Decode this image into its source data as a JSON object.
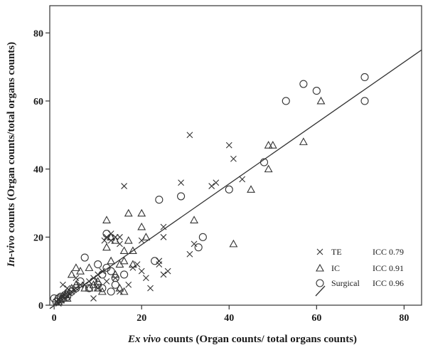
{
  "chart_data": {
    "type": "scatter",
    "xlabel_italic": "Ex vivo",
    "xlabel_rest": " counts (Organ counts/ total organs counts)",
    "ylabel_italic": "In-vivo",
    "ylabel_rest": " counts (Organ counts/total organs counts)",
    "xlim": [
      -1,
      84
    ],
    "ylim": [
      0,
      88
    ],
    "xticks": [
      0,
      20,
      40,
      60,
      80
    ],
    "yticks": [
      0,
      20,
      40,
      60,
      80
    ],
    "grid": false,
    "legend_position": "bottom-right",
    "series": [
      {
        "name": "TE",
        "icc": "ICC 0.79",
        "marker": "x",
        "points": [
          [
            0.5,
            1
          ],
          [
            1,
            1.5
          ],
          [
            1.5,
            2
          ],
          [
            2,
            2.5
          ],
          [
            2.5,
            3
          ],
          [
            3,
            3
          ],
          [
            3.5,
            3.5
          ],
          [
            4,
            4
          ],
          [
            4.5,
            4.5
          ],
          [
            5,
            5
          ],
          [
            6,
            6
          ],
          [
            7,
            6
          ],
          [
            8,
            7
          ],
          [
            9,
            8
          ],
          [
            10,
            9
          ],
          [
            11,
            10
          ],
          [
            11.5,
            19
          ],
          [
            12,
            20
          ],
          [
            13,
            19
          ],
          [
            14,
            20
          ],
          [
            15,
            18
          ],
          [
            15,
            20
          ],
          [
            16,
            35
          ],
          [
            18,
            11
          ],
          [
            19,
            12
          ],
          [
            20,
            10
          ],
          [
            20,
            19
          ],
          [
            21,
            8
          ],
          [
            22,
            5
          ],
          [
            24,
            13
          ],
          [
            24,
            12
          ],
          [
            25,
            9
          ],
          [
            25,
            20
          ],
          [
            25,
            23
          ],
          [
            26,
            10
          ],
          [
            29,
            36
          ],
          [
            31,
            15
          ],
          [
            31,
            50
          ],
          [
            32,
            18
          ],
          [
            36,
            35
          ],
          [
            37,
            36
          ],
          [
            40,
            47
          ],
          [
            41,
            43
          ],
          [
            43,
            37
          ],
          [
            9,
            2
          ],
          [
            13,
            21
          ],
          [
            12,
            7
          ],
          [
            14,
            8
          ],
          [
            10,
            5
          ],
          [
            15,
            4
          ],
          [
            17,
            6
          ],
          [
            2,
            6
          ],
          [
            3,
            5
          ],
          [
            5,
            8
          ],
          [
            1,
            0.5
          ]
        ]
      },
      {
        "name": "IC",
        "icc": "ICC 0.91",
        "marker": "triangle",
        "points": [
          [
            1,
            1
          ],
          [
            1.5,
            1.5
          ],
          [
            2,
            2
          ],
          [
            2.5,
            3
          ],
          [
            3,
            4
          ],
          [
            4,
            5
          ],
          [
            4,
            9
          ],
          [
            5,
            11
          ],
          [
            6,
            10
          ],
          [
            7,
            5
          ],
          [
            8,
            11
          ],
          [
            9,
            6
          ],
          [
            10,
            5
          ],
          [
            11,
            4
          ],
          [
            12,
            25
          ],
          [
            13,
            13
          ],
          [
            14,
            9
          ],
          [
            14,
            19
          ],
          [
            15,
            5
          ],
          [
            15,
            12
          ],
          [
            16,
            4
          ],
          [
            16,
            13
          ],
          [
            17,
            27
          ],
          [
            17,
            19
          ],
          [
            18,
            16
          ],
          [
            18,
            12
          ],
          [
            20,
            27
          ],
          [
            20,
            23
          ],
          [
            21,
            20
          ],
          [
            32,
            25
          ],
          [
            41,
            18
          ],
          [
            45,
            34
          ],
          [
            49,
            47
          ],
          [
            50,
            47
          ],
          [
            49,
            40
          ],
          [
            57,
            48
          ],
          [
            61,
            60
          ],
          [
            12,
            17
          ],
          [
            13,
            20
          ],
          [
            16,
            16
          ],
          [
            3,
            2
          ],
          [
            5,
            6
          ],
          [
            10,
            7
          ],
          [
            8,
            5
          ]
        ]
      },
      {
        "name": "Surgical",
        "icc": "ICC 0.96",
        "marker": "circle",
        "points": [
          [
            0,
            2
          ],
          [
            0.5,
            1
          ],
          [
            1,
            2
          ],
          [
            1.5,
            2.5
          ],
          [
            2,
            2
          ],
          [
            2.5,
            3
          ],
          [
            3,
            2.5
          ],
          [
            4,
            4
          ],
          [
            5,
            5
          ],
          [
            6,
            7
          ],
          [
            7,
            14
          ],
          [
            8,
            5
          ],
          [
            9,
            7
          ],
          [
            10,
            6
          ],
          [
            10,
            12
          ],
          [
            11,
            5
          ],
          [
            12,
            21
          ],
          [
            13,
            10
          ],
          [
            13,
            4
          ],
          [
            14,
            6
          ],
          [
            14,
            8
          ],
          [
            16,
            9
          ],
          [
            23,
            13
          ],
          [
            24,
            31
          ],
          [
            29,
            32
          ],
          [
            33,
            17
          ],
          [
            34,
            20
          ],
          [
            40,
            34
          ],
          [
            48,
            42
          ],
          [
            53,
            60
          ],
          [
            57,
            65
          ],
          [
            60,
            63
          ],
          [
            71,
            67
          ],
          [
            71,
            60
          ],
          [
            11,
            9
          ],
          [
            12,
            11
          ]
        ]
      }
    ],
    "fit_line": {
      "x": [
        -1,
        84
      ],
      "y": [
        -1,
        75
      ]
    }
  }
}
